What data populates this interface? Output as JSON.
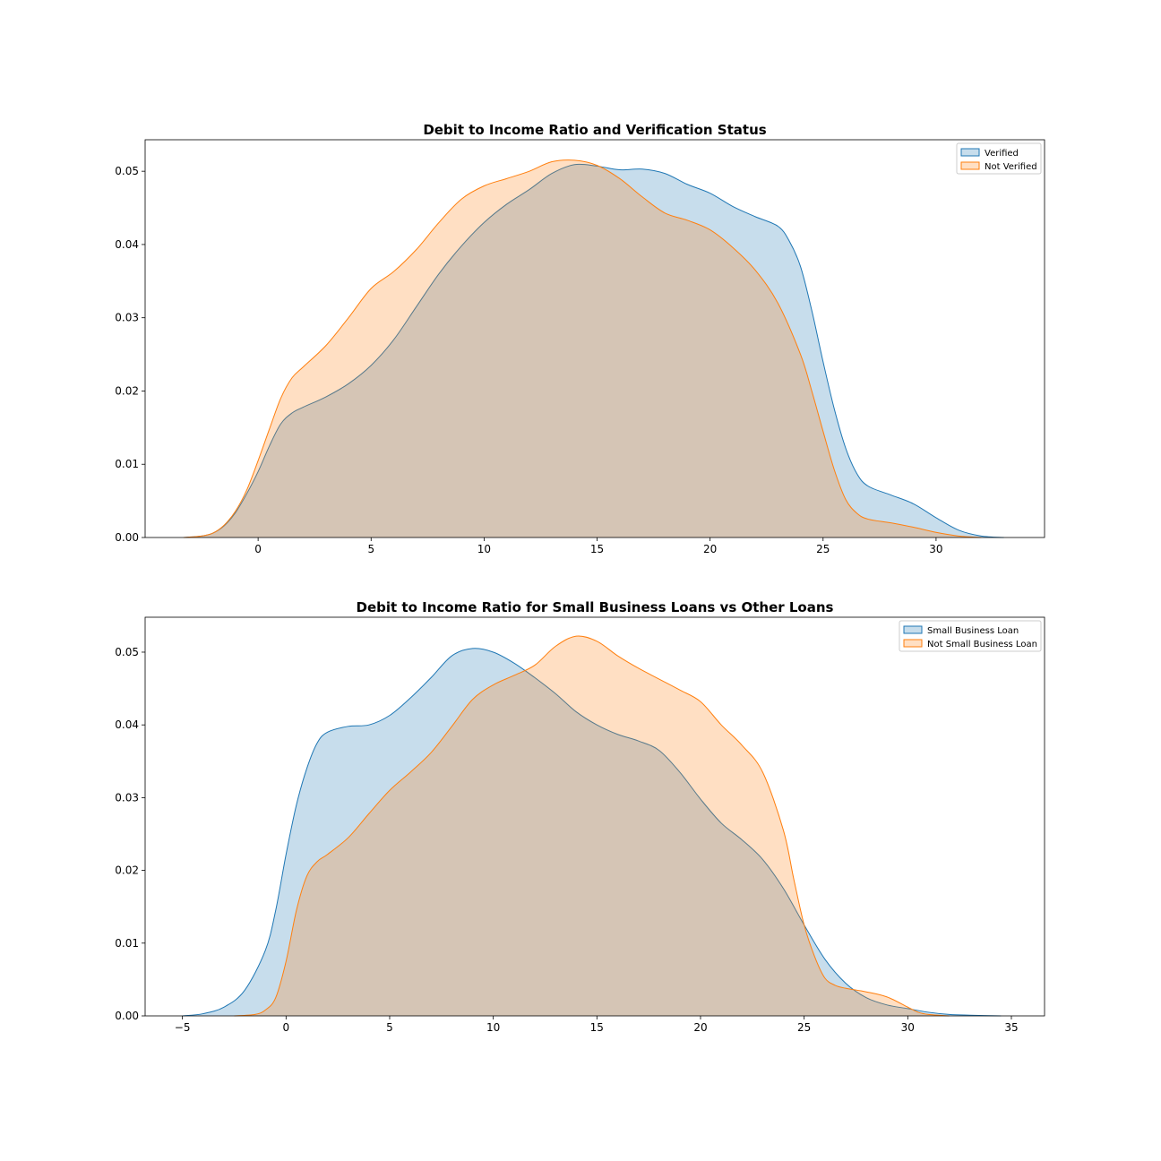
{
  "chart_data": [
    {
      "type": "area",
      "title": "Debit to Income Ratio and Verification Status",
      "xlabel": "",
      "ylabel": "",
      "xlim": [
        -5,
        34.8
      ],
      "ylim": [
        0,
        0.0543
      ],
      "xticks": [
        0,
        5,
        10,
        15,
        20,
        25,
        30
      ],
      "xtick_labels": [
        "0",
        "5",
        "10",
        "15",
        "20",
        "25",
        "30"
      ],
      "yticks": [
        0,
        0.01,
        0.02,
        0.03,
        0.04,
        0.05
      ],
      "ytick_labels": [
        "0.00",
        "0.01",
        "0.02",
        "0.03",
        "0.04",
        "0.05"
      ],
      "grid": false,
      "legend_position": "top-right",
      "series": [
        {
          "name": "Verified",
          "color": "#1f77b4",
          "points": [
            [
              -3.3,
              0
            ],
            [
              -2.5,
              0.0002
            ],
            [
              -2,
              0.0006
            ],
            [
              -1.5,
              0.0016
            ],
            [
              -1,
              0.0034
            ],
            [
              -0.5,
              0.006
            ],
            [
              0,
              0.009
            ],
            [
              0.5,
              0.0125
            ],
            [
              1,
              0.0155
            ],
            [
              1.5,
              0.017
            ],
            [
              2,
              0.0178
            ],
            [
              3,
              0.0192
            ],
            [
              4,
              0.021
            ],
            [
              5,
              0.0235
            ],
            [
              6,
              0.027
            ],
            [
              7,
              0.0315
            ],
            [
              8,
              0.036
            ],
            [
              9,
              0.0398
            ],
            [
              10,
              0.043
            ],
            [
              11,
              0.0455
            ],
            [
              12,
              0.0475
            ],
            [
              13,
              0.0497
            ],
            [
              14,
              0.0509
            ],
            [
              15,
              0.0507
            ],
            [
              16,
              0.0502
            ],
            [
              17,
              0.0503
            ],
            [
              18,
              0.0497
            ],
            [
              19,
              0.0482
            ],
            [
              20,
              0.047
            ],
            [
              21,
              0.0452
            ],
            [
              22,
              0.0438
            ],
            [
              23,
              0.0425
            ],
            [
              23.5,
              0.0405
            ],
            [
              24,
              0.037
            ],
            [
              24.5,
              0.031
            ],
            [
              25,
              0.024
            ],
            [
              25.5,
              0.0175
            ],
            [
              26,
              0.0122
            ],
            [
              26.5,
              0.0087
            ],
            [
              27,
              0.007
            ],
            [
              28,
              0.0058
            ],
            [
              29,
              0.0046
            ],
            [
              30,
              0.0027
            ],
            [
              31,
              0.001
            ],
            [
              32,
              0.0002
            ],
            [
              33,
              0
            ]
          ]
        },
        {
          "name": "Not Verified",
          "color": "#ff7f0e",
          "points": [
            [
              -3.3,
              0
            ],
            [
              -2.5,
              0.0002
            ],
            [
              -2,
              0.0006
            ],
            [
              -1.5,
              0.0017
            ],
            [
              -1,
              0.0036
            ],
            [
              -0.5,
              0.0065
            ],
            [
              0,
              0.0105
            ],
            [
              0.5,
              0.0148
            ],
            [
              1,
              0.019
            ],
            [
              1.5,
              0.0218
            ],
            [
              2,
              0.0233
            ],
            [
              3,
              0.0262
            ],
            [
              4,
              0.03
            ],
            [
              5,
              0.034
            ],
            [
              6,
              0.0363
            ],
            [
              7,
              0.0393
            ],
            [
              8,
              0.043
            ],
            [
              9,
              0.0462
            ],
            [
              10,
              0.048
            ],
            [
              11,
              0.049
            ],
            [
              12,
              0.05
            ],
            [
              13,
              0.0513
            ],
            [
              14,
              0.0515
            ],
            [
              15,
              0.0508
            ],
            [
              16,
              0.049
            ],
            [
              17,
              0.0465
            ],
            [
              18,
              0.0443
            ],
            [
              19,
              0.0433
            ],
            [
              20,
              0.042
            ],
            [
              21,
              0.0396
            ],
            [
              22,
              0.0365
            ],
            [
              23,
              0.032
            ],
            [
              24,
              0.025
            ],
            [
              24.5,
              0.02
            ],
            [
              25,
              0.0145
            ],
            [
              25.5,
              0.0092
            ],
            [
              26,
              0.0052
            ],
            [
              26.5,
              0.0033
            ],
            [
              27,
              0.0025
            ],
            [
              28,
              0.002
            ],
            [
              29,
              0.0014
            ],
            [
              30,
              0.0007
            ],
            [
              31,
              0.0002
            ],
            [
              32,
              0
            ]
          ]
        }
      ]
    },
    {
      "type": "area",
      "title": "Debit to Income Ratio for Small Business Loans vs Other Loans",
      "xlabel": "",
      "ylabel": "",
      "xlim": [
        -6.8,
        36.6
      ],
      "ylim": [
        0,
        0.0548
      ],
      "xticks": [
        -5,
        0,
        5,
        10,
        15,
        20,
        25,
        30,
        35
      ],
      "xtick_labels": [
        "−5",
        "0",
        "5",
        "10",
        "15",
        "20",
        "25",
        "30",
        "35"
      ],
      "yticks": [
        0,
        0.01,
        0.02,
        0.03,
        0.04,
        0.05
      ],
      "ytick_labels": [
        "0.00",
        "0.01",
        "0.02",
        "0.03",
        "0.04",
        "0.05"
      ],
      "grid": false,
      "legend_position": "top-right",
      "series": [
        {
          "name": "Small Business Loan",
          "color": "#1f77b4",
          "points": [
            [
              -5,
              0
            ],
            [
              -4,
              0.0003
            ],
            [
              -3,
              0.0012
            ],
            [
              -2,
              0.0035
            ],
            [
              -1,
              0.009
            ],
            [
              -0.5,
              0.0145
            ],
            [
              0,
              0.0222
            ],
            [
              0.5,
              0.029
            ],
            [
              1,
              0.034
            ],
            [
              1.5,
              0.0375
            ],
            [
              2,
              0.039
            ],
            [
              3,
              0.0398
            ],
            [
              4,
              0.04
            ],
            [
              5,
              0.0413
            ],
            [
              6,
              0.0437
            ],
            [
              7,
              0.0465
            ],
            [
              8,
              0.0495
            ],
            [
              9,
              0.0505
            ],
            [
              10,
              0.05
            ],
            [
              11,
              0.0485
            ],
            [
              12,
              0.0465
            ],
            [
              13,
              0.0443
            ],
            [
              14,
              0.0418
            ],
            [
              15,
              0.04
            ],
            [
              16,
              0.0387
            ],
            [
              17,
              0.0378
            ],
            [
              18,
              0.0365
            ],
            [
              19,
              0.0335
            ],
            [
              20,
              0.0298
            ],
            [
              21,
              0.0265
            ],
            [
              22,
              0.0242
            ],
            [
              23,
              0.0215
            ],
            [
              24,
              0.0175
            ],
            [
              25,
              0.0125
            ],
            [
              26,
              0.0078
            ],
            [
              27,
              0.0045
            ],
            [
              28,
              0.0025
            ],
            [
              29,
              0.0015
            ],
            [
              30,
              0.001
            ],
            [
              31,
              0.0005
            ],
            [
              32,
              0.0002
            ],
            [
              33,
              0.0001
            ],
            [
              34.5,
              0
            ]
          ]
        },
        {
          "name": "Not Small Business Loan",
          "color": "#ff7f0e",
          "points": [
            [
              -2.5,
              0
            ],
            [
              -1.5,
              0.0002
            ],
            [
              -1,
              0.0008
            ],
            [
              -0.5,
              0.0025
            ],
            [
              0,
              0.0075
            ],
            [
              0.5,
              0.0145
            ],
            [
              1,
              0.0192
            ],
            [
              1.5,
              0.0212
            ],
            [
              2,
              0.0222
            ],
            [
              3,
              0.0245
            ],
            [
              4,
              0.0278
            ],
            [
              5,
              0.031
            ],
            [
              6,
              0.0335
            ],
            [
              7,
              0.0362
            ],
            [
              8,
              0.0398
            ],
            [
              9,
              0.0435
            ],
            [
              10,
              0.0455
            ],
            [
              11,
              0.0468
            ],
            [
              12,
              0.0482
            ],
            [
              13,
              0.0508
            ],
            [
              14,
              0.0522
            ],
            [
              15,
              0.0515
            ],
            [
              16,
              0.0495
            ],
            [
              17,
              0.0478
            ],
            [
              18,
              0.0463
            ],
            [
              19,
              0.0448
            ],
            [
              20,
              0.0432
            ],
            [
              21,
              0.04
            ],
            [
              22,
              0.0372
            ],
            [
              23,
              0.0335
            ],
            [
              24,
              0.0255
            ],
            [
              24.5,
              0.0188
            ],
            [
              25,
              0.0125
            ],
            [
              25.5,
              0.0082
            ],
            [
              26,
              0.0052
            ],
            [
              26.5,
              0.0042
            ],
            [
              27,
              0.0038
            ],
            [
              28,
              0.0033
            ],
            [
              29,
              0.0026
            ],
            [
              30,
              0.0012
            ],
            [
              30.5,
              0.0005
            ],
            [
              31,
              0.0002
            ],
            [
              32,
              0
            ]
          ]
        }
      ]
    }
  ]
}
